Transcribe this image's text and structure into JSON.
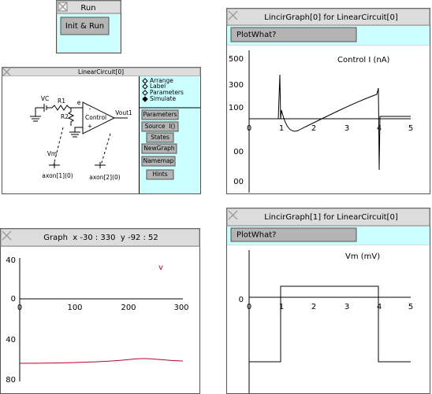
{
  "run_panel": {
    "title": "Run",
    "button": "Init & Run"
  },
  "circuit_window": {
    "title": "LinearCircuit[0]",
    "labels": {
      "vc": "VC",
      "r1": "R1",
      "r2": "R2",
      "e": "e",
      "minus": "-",
      "plus": "+",
      "control": "Control",
      "vout": "Vout1",
      "vm": "Vm",
      "axon1": "axon[1](0)",
      "axon2": "axon[2](0)"
    },
    "modes": [
      "Arrange",
      "Label",
      "Parameters",
      "Simulate"
    ],
    "buttons": [
      "Parameters",
      "Source  I()",
      "States",
      "NewGraph",
      "Namemap",
      "Hints"
    ]
  },
  "graph_window": {
    "title": "Graph  x -30 : 330  y -92 : 52",
    "y_labels": [
      "40",
      "0",
      "40",
      "80"
    ],
    "x_labels": [
      "0",
      "100",
      "200",
      "300"
    ],
    "trace_label": "v"
  },
  "lincir_graph_0": {
    "title": "LincirGraph[0] for LinearCircuit[0]",
    "button": "PlotWhat?",
    "plot_label": "Control I (nA)",
    "y_labels": [
      "500",
      "300",
      "100",
      "00",
      "00"
    ],
    "x_labels": [
      "0",
      "1",
      "2",
      "3",
      "4",
      "5"
    ]
  },
  "lincir_graph_1": {
    "title": "LincirGraph[1] for LinearCircuit[0]",
    "button": "PlotWhat?",
    "plot_label": "Vm (mV)",
    "y_labels": [
      "0"
    ],
    "x_labels": [
      "0",
      "1",
      "2",
      "3",
      "4",
      "5"
    ]
  }
}
